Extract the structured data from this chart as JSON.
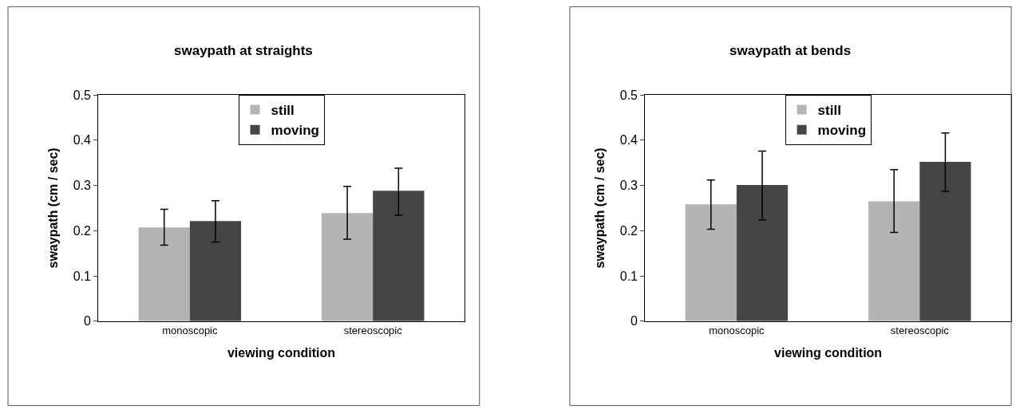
{
  "chart_data": [
    {
      "type": "bar",
      "title": "swaypath at straights",
      "xlabel": "viewing condition",
      "ylabel": "swaypath (cm / sec)",
      "categories": [
        "monoscopic",
        "stereoscopic"
      ],
      "series": [
        {
          "name": "still",
          "color": "#b4b4b4",
          "values": [
            0.207,
            0.239
          ],
          "errors": [
            [
              0.168,
              0.247
            ],
            [
              0.181,
              0.298
            ]
          ]
        },
        {
          "name": "moving",
          "color": "#454545",
          "values": [
            0.221,
            0.288
          ],
          "errors": [
            [
              0.175,
              0.266
            ],
            [
              0.234,
              0.338
            ]
          ]
        }
      ],
      "ylim": [
        0,
        0.5
      ],
      "yticks": [
        0,
        0.1,
        0.2,
        0.3,
        0.4,
        0.5
      ],
      "legend": "top"
    },
    {
      "type": "bar",
      "title": "swaypath at bends",
      "xlabel": "viewing condition",
      "ylabel": "swaypath (cm / sec)",
      "categories": [
        "monoscopic",
        "stereoscopic"
      ],
      "series": [
        {
          "name": "still",
          "color": "#b4b4b4",
          "values": [
            0.258,
            0.265
          ],
          "errors": [
            [
              0.203,
              0.312
            ],
            [
              0.196,
              0.335
            ]
          ]
        },
        {
          "name": "moving",
          "color": "#454545",
          "values": [
            0.301,
            0.352
          ],
          "errors": [
            [
              0.224,
              0.376
            ],
            [
              0.287,
              0.416
            ]
          ]
        }
      ],
      "ylim": [
        0,
        0.5
      ],
      "yticks": [
        0,
        0.1,
        0.2,
        0.3,
        0.4,
        0.5
      ],
      "legend": "top"
    }
  ]
}
